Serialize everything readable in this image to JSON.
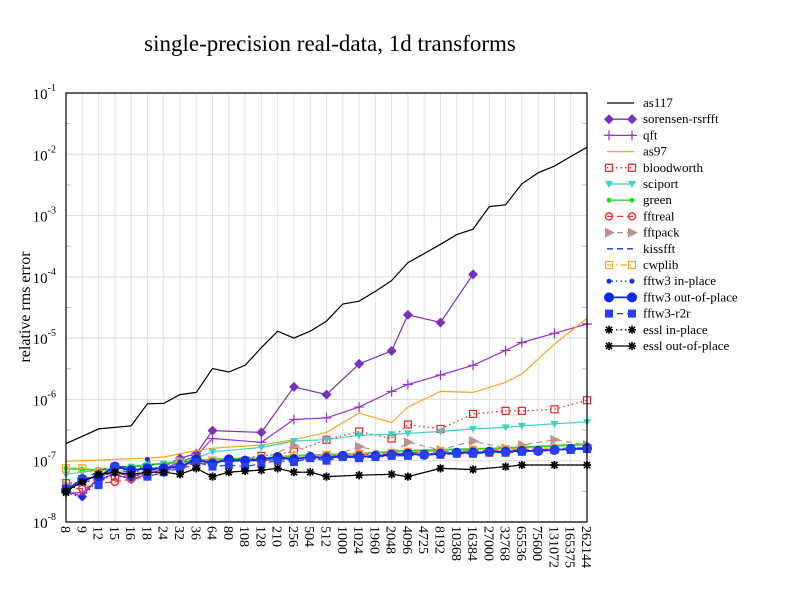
{
  "chart_data": {
    "type": "line",
    "title": "single-precision real-data, 1d transforms",
    "xlabel": "",
    "ylabel": "relative rms error",
    "yscale": "log",
    "ylim": [
      1e-08,
      0.1
    ],
    "yticks": [
      {
        "base": "10",
        "exp": "-8"
      },
      {
        "base": "10",
        "exp": "-7"
      },
      {
        "base": "10",
        "exp": "-6"
      },
      {
        "base": "10",
        "exp": "-5"
      },
      {
        "base": "10",
        "exp": "-4"
      },
      {
        "base": "10",
        "exp": "-3"
      },
      {
        "base": "10",
        "exp": "-2"
      },
      {
        "base": "10",
        "exp": "-1"
      }
    ],
    "grid": true,
    "legend_position": "right",
    "categories": [
      "8",
      "9",
      "12",
      "15",
      "16",
      "18",
      "24",
      "32",
      "36",
      "64",
      "80",
      "108",
      "128",
      "210",
      "256",
      "504",
      "512",
      "1000",
      "1024",
      "1960",
      "2048",
      "4096",
      "4725",
      "8192",
      "10368",
      "16384",
      "27000",
      "32768",
      "65536",
      "75600",
      "131072",
      "165375",
      "262144"
    ],
    "series": [
      {
        "name": "as117",
        "color": "#000000",
        "dash": "solid",
        "marker": "none",
        "values": [
          1.9e-07,
          2.5e-07,
          3.3e-07,
          3.5e-07,
          3.7e-07,
          8.5e-07,
          8.6e-07,
          1.2e-06,
          1.3e-06,
          3.2e-06,
          2.8e-06,
          3.6e-06,
          7e-06,
          1.3e-05,
          1e-05,
          1.3e-05,
          1.9e-05,
          3.6e-05,
          4e-05,
          5.8e-05,
          8.7e-05,
          0.00017,
          0.00024,
          0.00034,
          0.00049,
          0.0006,
          0.0014,
          0.0015,
          0.0033,
          0.005,
          0.0064,
          0.0092,
          0.013
        ]
      },
      {
        "name": "sorensen-rsrfft",
        "color": "#7b2fbe",
        "dash": "solid",
        "marker": "diamond",
        "values": [
          3.2e-08,
          2.6e-08,
          5.5e-08,
          6.5e-08,
          5.5e-08,
          6.5e-08,
          8e-08,
          1.1e-07,
          1.3e-07,
          3.1e-07,
          null,
          null,
          2.9e-07,
          null,
          1.6e-06,
          null,
          1.2e-06,
          null,
          3.8e-06,
          null,
          6.2e-06,
          2.4e-05,
          null,
          1.8e-05,
          null,
          0.00011,
          null,
          null,
          null,
          null,
          null,
          null,
          null
        ]
      },
      {
        "name": "qft",
        "color": "#9b30d0",
        "dash": "solid",
        "marker": "plus",
        "values": [
          3e-08,
          3e-08,
          5e-08,
          6e-08,
          5e-08,
          6e-08,
          7.5e-08,
          9.5e-08,
          1.2e-07,
          2.3e-07,
          null,
          null,
          2e-07,
          null,
          4.7e-07,
          null,
          5e-07,
          null,
          7.5e-07,
          null,
          1.35e-06,
          1.75e-06,
          null,
          2.5e-06,
          null,
          3.6e-06,
          null,
          6.3e-06,
          8.5e-06,
          null,
          1.2e-05,
          null,
          1.7e-05
        ]
      },
      {
        "name": "as97",
        "color": "#f5a623",
        "dash": "solid",
        "marker": "none",
        "values": [
          9.8e-08,
          1e-07,
          1.02e-07,
          1.05e-07,
          1.08e-07,
          1.1e-07,
          1.15e-07,
          1.3e-07,
          1.45e-07,
          1.6e-07,
          null,
          null,
          1.8e-07,
          null,
          2.2e-07,
          null,
          2.9e-07,
          null,
          6e-07,
          null,
          4.2e-07,
          7.5e-07,
          null,
          1.35e-06,
          null,
          1.3e-06,
          null,
          1.9e-06,
          2.6e-06,
          null,
          8e-06,
          null,
          2.1e-05
        ]
      },
      {
        "name": "bloodworth",
        "color": "#ee2222",
        "dash": "dotted",
        "marker": "square-open",
        "values": [
          4.3e-08,
          4.5e-08,
          5e-08,
          5.5e-08,
          5.5e-08,
          6e-08,
          7e-08,
          8e-08,
          9e-08,
          1e-07,
          null,
          null,
          1.2e-07,
          null,
          1.4e-07,
          null,
          2.2e-07,
          null,
          3e-07,
          null,
          2.3e-07,
          3.9e-07,
          null,
          3.3e-07,
          null,
          5.8e-07,
          null,
          6.5e-07,
          6.5e-07,
          null,
          6.9e-07,
          null,
          9.7e-07
        ]
      },
      {
        "name": "sciport",
        "color": "#40d0c8",
        "dash": "solid",
        "marker": "triangle-down",
        "values": [
          6e-08,
          6.5e-08,
          7e-08,
          7.5e-08,
          8e-08,
          8.5e-08,
          9e-08,
          1e-07,
          1.1e-07,
          1.4e-07,
          null,
          null,
          1.65e-07,
          null,
          2.1e-07,
          null,
          2.2e-07,
          null,
          2.6e-07,
          null,
          2.7e-07,
          2.8e-07,
          null,
          3e-07,
          null,
          3.3e-07,
          null,
          3.5e-07,
          3.7e-07,
          null,
          4e-07,
          null,
          4.3e-07
        ]
      },
      {
        "name": "green",
        "color": "#22dd22",
        "dash": "solid",
        "marker": "dot",
        "values": [
          7.5e-08,
          7.3e-08,
          7e-08,
          7.5e-08,
          8e-08,
          8.5e-08,
          9e-08,
          9.5e-08,
          1e-07,
          1.05e-07,
          null,
          null,
          1.1e-07,
          null,
          1.2e-07,
          null,
          1.25e-07,
          null,
          1.3e-07,
          null,
          1.4e-07,
          1.45e-07,
          null,
          1.5e-07,
          null,
          1.55e-07,
          null,
          1.6e-07,
          1.65e-07,
          null,
          1.75e-07,
          null,
          1.85e-07
        ]
      },
      {
        "name": "fftreal",
        "color": "#ee3333",
        "dash": "dashed",
        "marker": "circle-open",
        "values": [
          3.5e-08,
          3.5e-08,
          4.3e-08,
          4.5e-08,
          5e-08,
          5.5e-08,
          6.5e-08,
          7.5e-08,
          8.5e-08,
          9.5e-08,
          null,
          null,
          1e-07,
          null,
          1.1e-07,
          null,
          1.2e-07,
          null,
          1.25e-07,
          null,
          1.3e-07,
          1.35e-07,
          null,
          1.4e-07,
          null,
          1.45e-07,
          null,
          1.5e-07,
          1.5e-07,
          null,
          1.55e-07,
          null,
          1.6e-07
        ]
      },
      {
        "name": "fftpack",
        "color": "#c09090",
        "dash": "dashed",
        "marker": "triangle-right",
        "values": [
          4e-08,
          4.5e-08,
          6e-08,
          7.5e-08,
          7e-08,
          7e-08,
          8e-08,
          1e-07,
          1.1e-07,
          1e-07,
          null,
          null,
          1.05e-07,
          null,
          1.75e-07,
          null,
          1.1e-07,
          null,
          1.7e-07,
          null,
          1.3e-07,
          2e-07,
          null,
          1.5e-07,
          null,
          2.1e-07,
          null,
          1.6e-07,
          1.8e-07,
          null,
          2.2e-07,
          null,
          1.8e-07
        ]
      },
      {
        "name": "kissfft",
        "color": "#1030e0",
        "dash": "dashed",
        "marker": "none",
        "values": [
          3.3e-08,
          4.5e-08,
          7e-08,
          8e-08,
          8e-08,
          7e-08,
          7.5e-08,
          8.5e-08,
          9.5e-08,
          1e-07,
          null,
          null,
          1e-07,
          null,
          1.1e-07,
          null,
          1.15e-07,
          null,
          1.2e-07,
          null,
          1.2e-07,
          1.25e-07,
          null,
          1.3e-07,
          null,
          1.35e-07,
          null,
          1.4e-07,
          1.45e-07,
          null,
          1.5e-07,
          null,
          1.55e-07
        ]
      },
      {
        "name": "cwplib",
        "color": "#f5a623",
        "dash": "dashdot",
        "marker": "square-open",
        "values": [
          7.5e-08,
          7.5e-08,
          6.5e-08,
          7e-08,
          6.5e-08,
          6.8e-08,
          7e-08,
          8.5e-08,
          9e-08,
          1e-07,
          null,
          null,
          1.1e-07,
          null,
          1.2e-07,
          null,
          1.25e-07,
          null,
          1.3e-07,
          null,
          1.35e-07,
          1.4e-07,
          null,
          1.45e-07,
          null,
          1.5e-07,
          null,
          1.55e-07,
          1.55e-07,
          null,
          1.6e-07,
          null,
          1.65e-07
        ]
      },
      {
        "name": "fftw3 in-place",
        "color": "#1030e0",
        "dash": "dotted",
        "marker": "dot",
        "values": [
          3e-08,
          2.5e-08,
          5e-08,
          6e-08,
          5e-08,
          1.05e-07,
          6e-08,
          9.5e-08,
          1.05e-07,
          9.5e-08,
          1e-07,
          1.1e-07,
          1.05e-07,
          1.1e-07,
          1e-07,
          1.05e-07,
          1.1e-07,
          1.15e-07,
          1.2e-07,
          1.15e-07,
          1.2e-07,
          1.25e-07,
          1.3e-07,
          1.3e-07,
          1.35e-07,
          1.35e-07,
          1.4e-07,
          1.4e-07,
          1.45e-07,
          1.45e-07,
          1.5e-07,
          1.5e-07,
          1.55e-07
        ]
      },
      {
        "name": "fftw3 out-of-place",
        "color": "#0a28f0",
        "dash": "solid",
        "marker": "big-dot",
        "values": [
          3.3e-08,
          5e-08,
          5.5e-08,
          8e-08,
          7e-08,
          7.5e-08,
          7.5e-08,
          8e-08,
          1.05e-07,
          9e-08,
          1.05e-07,
          1e-07,
          1.05e-07,
          1.15e-07,
          1.05e-07,
          1.15e-07,
          1.1e-07,
          1.2e-07,
          1.15e-07,
          1.2e-07,
          1.25e-07,
          1.3e-07,
          1.25e-07,
          1.3e-07,
          1.35e-07,
          1.35e-07,
          1.4e-07,
          1.4e-07,
          1.45e-07,
          1.45e-07,
          1.5e-07,
          1.55e-07,
          1.6e-07
        ]
      },
      {
        "name": "fftw3-r2r",
        "color": "#2a40f0",
        "dash": "dashed",
        "marker": "square",
        "values": [
          3.5e-08,
          5e-08,
          4e-08,
          8e-08,
          6e-08,
          5.5e-08,
          6.5e-08,
          7.5e-08,
          9.5e-08,
          8e-08,
          8.5e-08,
          8e-08,
          9e-08,
          1e-07,
          9.5e-08,
          1.1e-07,
          1e-07,
          1.15e-07,
          1.1e-07,
          1.15e-07,
          1.2e-07,
          1.2e-07,
          1.25e-07,
          1.25e-07,
          1.3e-07,
          1.3e-07,
          1.35e-07,
          1.35e-07,
          1.4e-07,
          1.45e-07,
          1.5e-07,
          1.5e-07,
          1.55e-07
        ]
      },
      {
        "name": "essl in-place",
        "color": "#000000",
        "dash": "dotted",
        "marker": "star",
        "values": [
          3e-08,
          4.5e-08,
          6e-08,
          6.5e-08,
          6e-08,
          6.5e-08,
          6.5e-08,
          6e-08,
          7.5e-08,
          5.5e-08,
          6.5e-08,
          6.8e-08,
          7e-08,
          7.5e-08,
          6.5e-08,
          6.5e-08,
          5.5e-08,
          null,
          5.8e-08,
          null,
          6e-08,
          5.5e-08,
          null,
          7.5e-08,
          null,
          7.2e-08,
          null,
          8e-08,
          8.5e-08,
          null,
          8.5e-08,
          null,
          8.5e-08
        ]
      },
      {
        "name": "essl out-of-place",
        "color": "#000000",
        "dash": "solid",
        "marker": "star",
        "values": [
          3.2e-08,
          4.5e-08,
          6e-08,
          6.5e-08,
          6e-08,
          6.5e-08,
          6.5e-08,
          6e-08,
          7.5e-08,
          5.5e-08,
          6.5e-08,
          6.8e-08,
          7e-08,
          7.5e-08,
          6.5e-08,
          6.5e-08,
          5.5e-08,
          null,
          5.8e-08,
          null,
          6e-08,
          5.5e-08,
          null,
          7.5e-08,
          null,
          7.2e-08,
          null,
          8e-08,
          8.5e-08,
          null,
          8.5e-08,
          null,
          8.5e-08
        ]
      }
    ]
  }
}
